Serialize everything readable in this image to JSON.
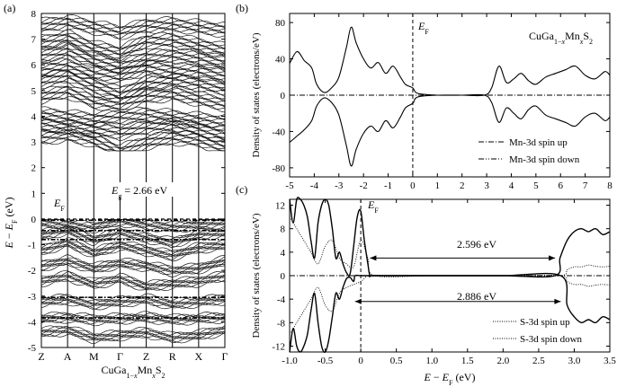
{
  "chart_data": [
    {
      "panel": "(a)",
      "type": "line",
      "ylabel": "E − E_F (eV)",
      "ylim": [
        -5,
        8
      ],
      "yticks": [
        "8",
        "7",
        "6",
        "5",
        "4",
        "3",
        "2",
        "1",
        "0",
        "-1",
        "-2",
        "-3",
        "-4",
        "-5"
      ],
      "kpoints": [
        "Z",
        "A",
        "M",
        "Γ",
        "Z",
        "R",
        "X",
        "Γ"
      ],
      "xlabel": "CuGa1−xMnxS2",
      "annotations": {
        "ef": "E_F",
        "eg": "E_g = 2.66 eV"
      },
      "conduction_bands": [
        [
          7.55,
          7.7,
          7.5,
          7.3,
          7.55,
          7.6,
          7.5,
          7.4
        ],
        [
          6.9,
          7.1,
          6.7,
          6.5,
          6.95,
          7.0,
          6.8,
          6.6
        ],
        [
          6.4,
          6.6,
          6.2,
          6.0,
          6.3,
          6.4,
          6.3,
          6.1
        ],
        [
          5.9,
          6.0,
          5.7,
          5.6,
          5.9,
          5.8,
          5.8,
          5.6
        ],
        [
          5.4,
          5.6,
          5.2,
          4.9,
          5.3,
          5.4,
          5.3,
          5.1
        ],
        [
          4.8,
          5.0,
          4.6,
          4.5,
          4.8,
          4.9,
          4.7,
          4.5
        ],
        [
          4.1,
          4.0,
          3.9,
          4.0,
          4.1,
          4.0,
          3.9,
          3.8
        ],
        [
          3.7,
          3.6,
          3.5,
          3.4,
          3.6,
          3.7,
          3.5,
          3.3
        ],
        [
          3.2,
          3.3,
          3.1,
          2.66,
          3.0,
          3.2,
          3.1,
          2.8
        ]
      ],
      "valence_bands": [
        [
          -0.1,
          -0.2,
          -0.3,
          -0.05,
          -0.2,
          -0.3,
          -0.2,
          -0.1
        ],
        [
          -0.6,
          -0.4,
          -0.8,
          -0.5,
          -0.7,
          -0.9,
          -0.6,
          -0.5
        ],
        [
          -1.2,
          -0.9,
          -1.3,
          -1.0,
          -1.2,
          -1.4,
          -1.1,
          -1.0
        ],
        [
          -1.8,
          -1.6,
          -1.9,
          -1.7,
          -1.8,
          -2.0,
          -1.9,
          -1.6
        ],
        [
          -2.4,
          -2.2,
          -2.5,
          -2.3,
          -2.6,
          -2.5,
          -2.4,
          -2.2
        ],
        [
          -3.2,
          -3.1,
          -3.3,
          -3.2,
          -3.1,
          -3.3,
          -3.2,
          -3.1
        ],
        [
          -3.85,
          -3.8,
          -3.9,
          -3.85,
          -3.8,
          -3.9,
          -3.85,
          -3.8
        ],
        [
          -4.4,
          -4.3,
          -4.6,
          -4.5,
          -4.4,
          -4.6,
          -4.5,
          -4.3
        ]
      ]
    },
    {
      "panel": "(b)",
      "type": "line",
      "ylabel": "Density of states (electrons/eV)",
      "xlim": [
        -5,
        8
      ],
      "ylim": [
        -90,
        90
      ],
      "xticks": [
        -5,
        -4,
        -3,
        -2,
        -1,
        0,
        1,
        2,
        3,
        4,
        5,
        6,
        7,
        8
      ],
      "yticks": [
        80,
        40,
        0,
        -40,
        -80
      ],
      "label": "CuGa1−xMnxS2",
      "ef_label": "E_F",
      "legend": [
        "Mn-3d spin up",
        "Mn-3d spin down"
      ],
      "series": [
        {
          "name": "total spin up",
          "x": [
            -5,
            -4.7,
            -4.4,
            -4.1,
            -3.9,
            -3.6,
            -3.3,
            -3.0,
            -2.7,
            -2.5,
            -2.3,
            -2.0,
            -1.7,
            -1.4,
            -1.1,
            -0.8,
            -0.5,
            -0.3,
            0.0,
            0.2,
            1,
            2,
            2.9,
            3.2,
            3.5,
            3.8,
            4.1,
            4.4,
            4.7,
            5.0,
            5.4,
            5.8,
            6.2,
            6.6,
            7.0,
            7.4,
            7.8,
            8.0
          ],
          "y": [
            35,
            48,
            38,
            30,
            12,
            3,
            8,
            20,
            52,
            75,
            58,
            40,
            30,
            36,
            24,
            32,
            20,
            12,
            8,
            2,
            0,
            0,
            0,
            8,
            32,
            14,
            18,
            24,
            16,
            12,
            20,
            24,
            28,
            32,
            22,
            18,
            26,
            22
          ]
        },
        {
          "name": "total spin down",
          "x": [
            -5,
            -4.7,
            -4.4,
            -4.1,
            -3.9,
            -3.6,
            -3.3,
            -3.0,
            -2.7,
            -2.5,
            -2.3,
            -2.0,
            -1.7,
            -1.4,
            -1.1,
            -0.8,
            -0.5,
            -0.3,
            0.0,
            0.2,
            1,
            2,
            2.9,
            3.2,
            3.5,
            3.8,
            4.1,
            4.4,
            4.7,
            5.0,
            5.4,
            5.8,
            6.2,
            6.6,
            7.0,
            7.4,
            7.8,
            8.0
          ],
          "y": [
            -52,
            -45,
            -38,
            -28,
            -12,
            -3,
            -8,
            -22,
            -55,
            -78,
            -60,
            -42,
            -34,
            -40,
            -28,
            -36,
            -24,
            -14,
            -9,
            -2,
            0,
            0,
            0,
            -8,
            -30,
            -14,
            -20,
            -26,
            -16,
            -12,
            -22,
            -26,
            -30,
            -34,
            -24,
            -20,
            -28,
            -24
          ]
        }
      ]
    },
    {
      "panel": "(c)",
      "type": "line",
      "ylabel": "Density of states (electrons/eV)",
      "xlabel": "E − E_F (eV)",
      "xlim": [
        -1.0,
        3.5
      ],
      "ylim": [
        -13,
        13
      ],
      "xticks": [
        "-1.0",
        "-0.5",
        "0",
        "0.5",
        "1.0",
        "1.5",
        "2.0",
        "2.5",
        "3.0",
        "3.5"
      ],
      "yticks": [
        12,
        8,
        4,
        0,
        -4,
        -8,
        -12
      ],
      "ef_label": "E_F",
      "annotations": [
        "2.596 eV",
        "2.886 eV"
      ],
      "gaps": [
        {
          "from": 0.13,
          "to": 2.73,
          "value": "2.596 eV"
        },
        {
          "from": -0.08,
          "to": 2.81,
          "value": "2.886 eV"
        }
      ],
      "legend": [
        "S-3d spin up",
        "S-3d spin down"
      ],
      "series": [
        {
          "name": "total spin up",
          "x": [
            -1.0,
            -0.95,
            -0.9,
            -0.85,
            -0.8,
            -0.75,
            -0.7,
            -0.65,
            -0.6,
            -0.55,
            -0.5,
            -0.45,
            -0.4,
            -0.35,
            -0.3,
            -0.25,
            -0.2,
            -0.15,
            -0.1,
            -0.05,
            0.0,
            0.05,
            0.1,
            0.13,
            0.2,
            1.0,
            2.0,
            2.73,
            2.8,
            2.9,
            3.0,
            3.1,
            3.2,
            3.3,
            3.4,
            3.5
          ],
          "y": [
            13,
            9,
            13,
            13,
            12,
            10,
            6,
            3,
            9,
            12,
            13,
            12,
            8,
            3,
            4,
            2,
            0.5,
            0.3,
            5,
            10,
            11,
            6,
            2,
            0,
            0,
            0,
            0,
            0,
            3,
            6,
            7.5,
            8,
            7.5,
            8,
            7,
            7.5
          ]
        },
        {
          "name": "total spin down",
          "x": [
            -1.0,
            -0.95,
            -0.9,
            -0.85,
            -0.8,
            -0.75,
            -0.7,
            -0.65,
            -0.6,
            -0.55,
            -0.5,
            -0.45,
            -0.4,
            -0.35,
            -0.3,
            -0.25,
            -0.2,
            -0.15,
            -0.1,
            -0.08,
            0.0,
            0.2,
            1.0,
            2.0,
            2.81,
            2.9,
            3.0,
            3.1,
            3.2,
            3.3,
            3.4,
            3.5
          ],
          "y": [
            -13,
            -9,
            -12,
            -13,
            -12,
            -10,
            -6,
            -3,
            -8,
            -12,
            -13,
            -11,
            -7,
            -3,
            -4,
            -2,
            -0.5,
            -0.3,
            -1,
            0,
            0,
            0,
            0,
            0,
            0,
            -5,
            -7,
            -8,
            -7.5,
            -8,
            -7,
            -7.5
          ]
        },
        {
          "name": "S-3d spin up",
          "x": [
            -1.0,
            -0.9,
            -0.8,
            -0.7,
            -0.6,
            -0.5,
            -0.4,
            -0.3,
            -0.2,
            -0.1,
            0.0,
            0.1,
            0.2,
            1.0,
            2.0,
            2.8,
            2.9,
            3.0,
            3.1,
            3.2,
            3.3,
            3.4,
            3.5
          ],
          "y": [
            10,
            8,
            6,
            4,
            2,
            5,
            6,
            3,
            2,
            1.5,
            6,
            3,
            0,
            0,
            0,
            0,
            1,
            1.5,
            1.5,
            1.8,
            1.6,
            1.5,
            1.6
          ]
        },
        {
          "name": "S-3d spin down",
          "x": [
            -1.0,
            -0.9,
            -0.8,
            -0.7,
            -0.6,
            -0.5,
            -0.4,
            -0.3,
            -0.2,
            -0.1,
            0.0,
            0.1,
            0.2,
            1.0,
            2.0,
            2.8,
            2.9,
            3.0,
            3.1,
            3.2,
            3.3,
            3.4,
            3.5
          ],
          "y": [
            -10,
            -8,
            -6,
            -4,
            -2,
            -5,
            -6,
            -3,
            -2,
            -1.5,
            -1,
            0,
            0,
            0,
            0,
            0,
            -1,
            -1.5,
            -1.5,
            -1.8,
            -1.6,
            -1.5,
            -1.6
          ]
        }
      ]
    }
  ]
}
